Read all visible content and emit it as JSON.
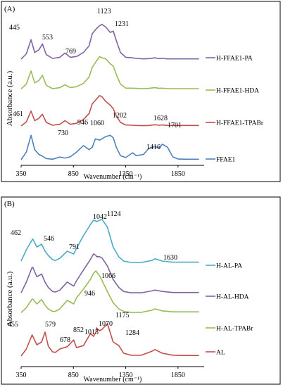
{
  "chart_data": [
    {
      "type": "line",
      "panel_label": "(A)",
      "xlabel": "Wavenumber (cm⁻¹)",
      "ylabel": "Absorbance  (a.u.)",
      "xlim": [
        350,
        2100
      ],
      "xticks": [
        "350",
        "850",
        "1350",
        "1850"
      ],
      "x": [
        350,
        400,
        445,
        480,
        520,
        553,
        590,
        650,
        720,
        769,
        820,
        880,
        946,
        1000,
        1030,
        1060,
        1100,
        1123,
        1160,
        1202,
        1231,
        1260,
        1300,
        1350,
        1416,
        1450,
        1520,
        1570,
        1628,
        1670,
        1701,
        1750,
        1800,
        1850,
        1950,
        2050
      ],
      "series": [
        {
          "name": "H-FFAE1-PA",
          "color": "#8064A2",
          "values": [
            0.05,
            0.25,
            0.78,
            0.3,
            0.4,
            0.62,
            0.22,
            0.08,
            0.12,
            0.28,
            0.12,
            0.15,
            0.3,
            0.55,
            1.0,
            1.15,
            1.3,
            1.35,
            1.25,
            1.05,
            1.1,
            0.75,
            0.3,
            0.12,
            0.1,
            0.08,
            0.06,
            0.07,
            0.1,
            0.07,
            0.08,
            0.06,
            0.06,
            0.06,
            0.06,
            0.06
          ]
        },
        {
          "name": "H-FFAE1-HDA",
          "color": "#9BBB59",
          "values": [
            0.05,
            0.25,
            0.8,
            0.3,
            0.4,
            0.62,
            0.2,
            0.06,
            0.1,
            0.22,
            0.1,
            0.14,
            0.28,
            0.55,
            0.95,
            1.15,
            1.4,
            1.35,
            1.3,
            1.1,
            1.0,
            0.65,
            0.25,
            0.08,
            0.08,
            0.07,
            0.06,
            0.07,
            0.1,
            0.07,
            0.08,
            0.06,
            0.06,
            0.06,
            0.06,
            0.06
          ]
        },
        {
          "name": "H-FFAE1-TPABr",
          "color": "#C0504D",
          "values": [
            0.03,
            0.2,
            0.65,
            0.25,
            0.35,
            0.52,
            0.18,
            0.06,
            0.1,
            0.25,
            0.1,
            0.14,
            0.3,
            0.55,
            0.95,
            1.1,
            1.3,
            1.25,
            1.05,
            0.9,
            0.75,
            0.45,
            0.18,
            0.07,
            0.06,
            0.05,
            0.04,
            0.05,
            0.08,
            0.06,
            0.07,
            0.05,
            0.05,
            0.05,
            0.05,
            0.05
          ]
        },
        {
          "name": "FFAE1",
          "color": "#4F81BD",
          "values": [
            0.03,
            0.35,
            1.05,
            0.45,
            0.25,
            0.18,
            0.08,
            0.05,
            0.14,
            0.1,
            0.15,
            0.35,
            0.62,
            0.45,
            0.55,
            0.9,
            0.85,
            0.9,
            1.0,
            1.05,
            0.95,
            0.55,
            0.2,
            0.12,
            0.32,
            0.2,
            0.25,
            0.5,
            0.58,
            0.52,
            0.68,
            0.55,
            0.15,
            0.06,
            0.05,
            0.05
          ]
        }
      ],
      "annotations": [
        "445",
        "553",
        "769",
        "1123",
        "1231",
        "461",
        "730",
        "946",
        "1060",
        "1202",
        "1416",
        "1628",
        "1701"
      ]
    },
    {
      "type": "line",
      "panel_label": "(B)",
      "xlabel": "Wavenumber (cm⁻¹)",
      "ylabel": "Absorbance  (a.u.)",
      "xlim": [
        350,
        2100
      ],
      "xticks": [
        "350",
        "850",
        "1350",
        "1850"
      ],
      "x": [
        350,
        400,
        455,
        462,
        500,
        546,
        579,
        610,
        650,
        678,
        720,
        791,
        852,
        880,
        946,
        1013,
        1042,
        1066,
        1070,
        1100,
        1124,
        1175,
        1230,
        1284,
        1330,
        1400,
        1500,
        1600,
        1630,
        1700,
        1800,
        1900,
        2050
      ],
      "series": [
        {
          "name": "H-AL-PA",
          "color": "#4BACC6",
          "values": [
            0.1,
            0.5,
            0.85,
            0.88,
            0.6,
            0.7,
            0.45,
            0.3,
            0.15,
            0.12,
            0.2,
            0.45,
            0.35,
            0.55,
            1.0,
            1.4,
            1.55,
            1.52,
            1.5,
            1.55,
            1.58,
            1.3,
            0.6,
            0.25,
            0.1,
            0.05,
            0.05,
            0.12,
            0.18,
            0.1,
            0.06,
            0.06,
            0.06
          ]
        },
        {
          "name": "H-AL-HDA",
          "color": "#8064A2",
          "values": [
            0.05,
            0.45,
            1.0,
            1.0,
            0.65,
            0.75,
            0.45,
            0.25,
            0.1,
            0.08,
            0.15,
            0.45,
            0.3,
            0.5,
            0.9,
            1.3,
            1.5,
            1.45,
            1.4,
            1.4,
            1.35,
            1.05,
            0.55,
            0.25,
            0.1,
            0.05,
            0.05,
            0.12,
            0.15,
            0.1,
            0.06,
            0.06,
            0.06
          ]
        },
        {
          "name": "H-AL-TPABr",
          "color": "#9BBB59",
          "values": [
            0.05,
            0.25,
            0.6,
            0.6,
            0.4,
            0.58,
            0.35,
            0.2,
            0.1,
            0.1,
            0.2,
            0.55,
            0.4,
            0.65,
            1.0,
            1.4,
            1.65,
            1.75,
            1.7,
            1.55,
            1.35,
            0.9,
            0.45,
            0.2,
            0.1,
            0.06,
            0.06,
            0.15,
            0.2,
            0.12,
            0.08,
            0.08,
            0.08
          ]
        },
        {
          "name": "AL",
          "color": "#C0504D",
          "values": [
            0.05,
            0.3,
            0.8,
            0.75,
            0.45,
            0.55,
            0.9,
            0.4,
            0.2,
            0.18,
            0.3,
            0.38,
            0.62,
            0.35,
            0.42,
            0.85,
            0.75,
            0.9,
            1.05,
            0.95,
            1.0,
            1.2,
            0.55,
            0.42,
            0.15,
            0.08,
            0.08,
            0.22,
            0.28,
            0.15,
            0.08,
            0.07,
            0.07
          ]
        }
      ],
      "annotations": [
        "462",
        "546",
        "791",
        "1042",
        "1124",
        "1630",
        "1066",
        "946",
        "455",
        "579",
        "678",
        "852",
        "1013",
        "1070",
        "1175",
        "1284"
      ]
    }
  ]
}
